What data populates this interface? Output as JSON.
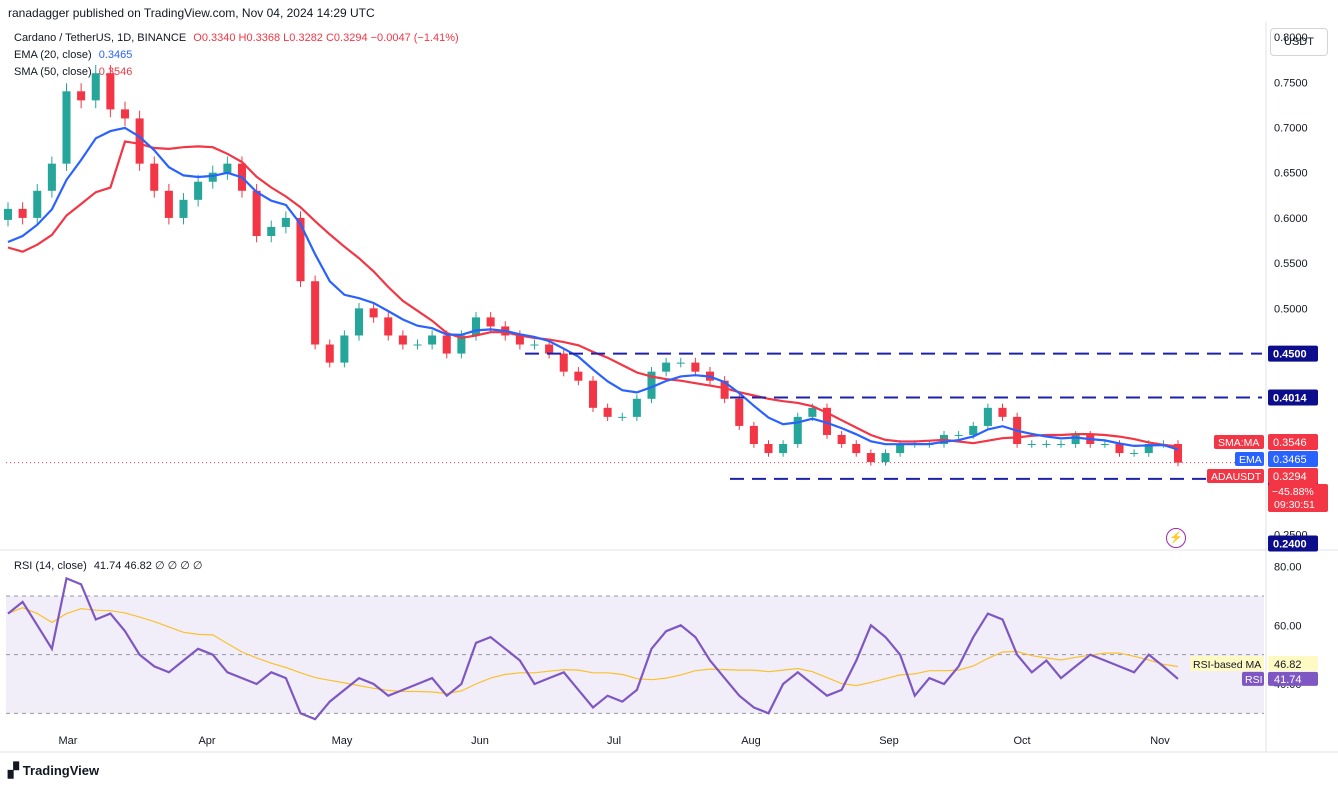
{
  "header": {
    "published": "ranadagger published on TradingView.com, Nov 04, 2024 14:29 UTC"
  },
  "legend": {
    "symbol": "Cardano / TetherUS, 1D, BINANCE",
    "ohlc": "O0.3340 H0.3368 L0.3282 C0.3294 −0.0047 (−1.41%)",
    "ema_label": "EMA (20, close)",
    "ema_value": "0.3465",
    "sma_label": "SMA (50, close)",
    "sma_value": "0.3546",
    "rsi_label": "RSI (14, close)",
    "rsi_values": "41.74  46.82  ∅  ∅  ∅  ∅"
  },
  "currency_button": "USDT",
  "footer": {
    "logo_text": "TradingView"
  },
  "colors": {
    "up": "#26a69a",
    "down": "#f23645",
    "ema": "#2962ff",
    "sma": "#f23645",
    "rsi": "#7e57c2",
    "rsi_ma": "#fbc02d",
    "level": "#1e22aa"
  },
  "chart_data": [
    {
      "type": "candlestick",
      "title": "Cardano / TetherUS, 1D, BINANCE",
      "y_axis": {
        "ticks": [
          "0.8000",
          "0.7500",
          "0.7000",
          "0.6500",
          "0.6000",
          "0.5500",
          "0.5000",
          "0.4500",
          "0.4000",
          "0.3500",
          "0.3000",
          "0.2500"
        ],
        "range": [
          0.235,
          0.81
        ]
      },
      "x_axis": {
        "ticks": [
          "Mar",
          "Apr",
          "May",
          "Jun",
          "Jul",
          "Aug",
          "Sep",
          "Oct",
          "Nov"
        ]
      },
      "approx_closes": [
        0.61,
        0.6,
        0.63,
        0.66,
        0.74,
        0.73,
        0.76,
        0.72,
        0.71,
        0.66,
        0.63,
        0.6,
        0.62,
        0.64,
        0.65,
        0.66,
        0.63,
        0.58,
        0.59,
        0.6,
        0.53,
        0.46,
        0.44,
        0.47,
        0.5,
        0.49,
        0.47,
        0.46,
        0.46,
        0.47,
        0.45,
        0.47,
        0.49,
        0.48,
        0.47,
        0.46,
        0.46,
        0.45,
        0.43,
        0.42,
        0.39,
        0.38,
        0.38,
        0.4,
        0.43,
        0.44,
        0.44,
        0.43,
        0.42,
        0.4,
        0.37,
        0.35,
        0.34,
        0.35,
        0.38,
        0.39,
        0.36,
        0.35,
        0.34,
        0.33,
        0.34,
        0.35,
        0.35,
        0.35,
        0.36,
        0.36,
        0.37,
        0.39,
        0.38,
        0.35,
        0.35,
        0.35,
        0.35,
        0.36,
        0.35,
        0.35,
        0.34,
        0.34,
        0.35,
        0.35,
        0.3294
      ],
      "levels": [
        {
          "value": "0.4500"
        },
        {
          "value": "0.4014"
        },
        {
          "value": "0.3114"
        },
        {
          "value": "0.2400"
        }
      ],
      "price_labels": [
        {
          "name": "SMA:MA",
          "value": "0.3546"
        },
        {
          "name": "EMA",
          "value": "0.3465"
        },
        {
          "name": "ADAUSDT",
          "value": "0.3294"
        }
      ],
      "countdown": "−45.88%\n09:30:51",
      "series": [
        {
          "name": "EMA (20, close)"
        },
        {
          "name": "SMA (50, close)"
        }
      ]
    },
    {
      "type": "line",
      "title": "RSI (14, close)",
      "y_axis": {
        "ticks": [
          "80.00",
          "60.00",
          "40.00"
        ],
        "range": [
          25,
          85
        ]
      },
      "bands": [
        70,
        50,
        30
      ],
      "approx_rsi": [
        64,
        68,
        60,
        52,
        76,
        74,
        62,
        64,
        58,
        50,
        46,
        44,
        48,
        52,
        50,
        44,
        42,
        40,
        44,
        42,
        30,
        28,
        34,
        38,
        42,
        40,
        36,
        38,
        40,
        42,
        36,
        40,
        54,
        56,
        52,
        48,
        40,
        42,
        44,
        38,
        32,
        36,
        34,
        38,
        52,
        58,
        60,
        56,
        48,
        42,
        36,
        32,
        30,
        40,
        44,
        40,
        36,
        38,
        48,
        60,
        56,
        50,
        36,
        42,
        40,
        46,
        56,
        64,
        62,
        50,
        44,
        48,
        42,
        46,
        50,
        48,
        46,
        44,
        50,
        46,
        41.74
      ],
      "ma_label": "RSI-based MA",
      "ma_value": "46.82",
      "rsi_label": "RSI",
      "rsi_value": "41.74"
    }
  ]
}
